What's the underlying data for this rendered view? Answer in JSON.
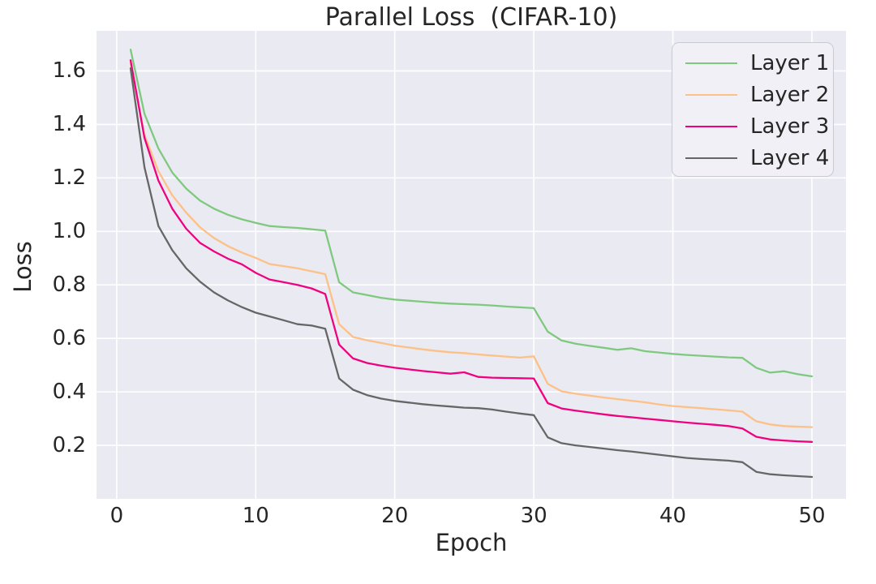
{
  "title": "Parallel Loss  (CIFAR-10)",
  "chart_data": {
    "type": "line",
    "title": "Parallel Loss  (CIFAR-10)",
    "xlabel": "Epoch",
    "ylabel": "Loss",
    "xlim": [
      -1.45,
      52.45
    ],
    "ylim": [
      0,
      1.75
    ],
    "x_ticks": [
      0,
      10,
      20,
      30,
      40,
      50
    ],
    "y_ticks": [
      0.2,
      0.4,
      0.6,
      0.8,
      1.0,
      1.2,
      1.4,
      1.6
    ],
    "grid": true,
    "plot_bg": "#eaeaf2",
    "grid_color": "#ffffff",
    "text_color": "#262626",
    "legend_position": "upper right",
    "x": [
      1,
      2,
      3,
      4,
      5,
      6,
      7,
      8,
      9,
      10,
      11,
      12,
      13,
      14,
      15,
      16,
      17,
      18,
      19,
      20,
      21,
      22,
      23,
      24,
      25,
      26,
      27,
      28,
      29,
      30,
      31,
      32,
      33,
      34,
      35,
      36,
      37,
      38,
      39,
      40,
      41,
      42,
      43,
      44,
      45,
      46,
      47,
      48,
      49,
      50
    ],
    "series": [
      {
        "name": "Layer 1",
        "color": "#7fc97f",
        "values": [
          1.68,
          1.44,
          1.31,
          1.22,
          1.16,
          1.115,
          1.085,
          1.062,
          1.045,
          1.032,
          1.02,
          1.016,
          1.013,
          1.008,
          1.003,
          0.81,
          0.772,
          0.762,
          0.752,
          0.745,
          0.741,
          0.737,
          0.733,
          0.73,
          0.728,
          0.726,
          0.723,
          0.719,
          0.716,
          0.713,
          0.625,
          0.592,
          0.58,
          0.572,
          0.565,
          0.557,
          0.563,
          0.552,
          0.547,
          0.542,
          0.538,
          0.535,
          0.532,
          0.529,
          0.527,
          0.49,
          0.472,
          0.477,
          0.466,
          0.458
        ]
      },
      {
        "name": "Layer 2",
        "color": "#fdc086",
        "values": [
          1.63,
          1.36,
          1.225,
          1.135,
          1.07,
          1.015,
          0.975,
          0.945,
          0.921,
          0.901,
          0.878,
          0.87,
          0.862,
          0.851,
          0.84,
          0.653,
          0.605,
          0.593,
          0.583,
          0.573,
          0.566,
          0.559,
          0.553,
          0.548,
          0.545,
          0.54,
          0.536,
          0.532,
          0.528,
          0.533,
          0.43,
          0.402,
          0.393,
          0.386,
          0.379,
          0.373,
          0.367,
          0.361,
          0.353,
          0.347,
          0.343,
          0.339,
          0.335,
          0.331,
          0.326,
          0.29,
          0.278,
          0.272,
          0.27,
          0.268
        ]
      },
      {
        "name": "Layer 3",
        "color": "#f0027f",
        "values": [
          1.64,
          1.35,
          1.19,
          1.085,
          1.01,
          0.957,
          0.925,
          0.898,
          0.877,
          0.845,
          0.82,
          0.81,
          0.8,
          0.787,
          0.766,
          0.577,
          0.525,
          0.508,
          0.498,
          0.49,
          0.484,
          0.478,
          0.473,
          0.468,
          0.473,
          0.456,
          0.453,
          0.452,
          0.451,
          0.45,
          0.358,
          0.338,
          0.33,
          0.323,
          0.316,
          0.31,
          0.305,
          0.3,
          0.295,
          0.29,
          0.285,
          0.281,
          0.277,
          0.272,
          0.263,
          0.232,
          0.222,
          0.218,
          0.215,
          0.213
        ]
      },
      {
        "name": "Layer 4",
        "color": "#666666",
        "values": [
          1.61,
          1.24,
          1.02,
          0.93,
          0.862,
          0.812,
          0.772,
          0.742,
          0.717,
          0.696,
          0.682,
          0.668,
          0.653,
          0.648,
          0.636,
          0.45,
          0.408,
          0.388,
          0.375,
          0.366,
          0.36,
          0.354,
          0.349,
          0.345,
          0.341,
          0.339,
          0.334,
          0.326,
          0.319,
          0.313,
          0.23,
          0.208,
          0.2,
          0.194,
          0.188,
          0.182,
          0.177,
          0.171,
          0.165,
          0.159,
          0.153,
          0.149,
          0.146,
          0.143,
          0.137,
          0.101,
          0.092,
          0.088,
          0.085,
          0.082
        ]
      }
    ]
  }
}
